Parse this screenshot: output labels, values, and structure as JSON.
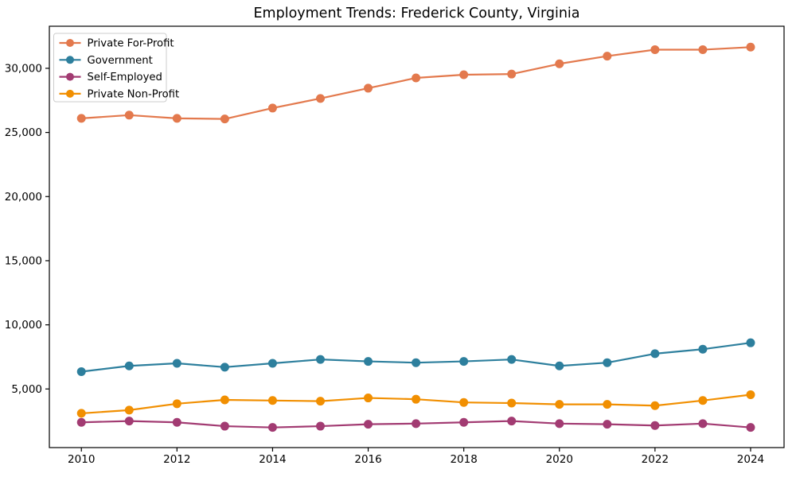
{
  "chart_data": {
    "type": "line",
    "title": "Employment Trends: Frederick County, Virginia",
    "xlabel": "",
    "ylabel": "",
    "x": [
      2010,
      2011,
      2012,
      2013,
      2014,
      2015,
      2016,
      2017,
      2018,
      2019,
      2020,
      2021,
      2022,
      2023,
      2024
    ],
    "x_ticks": [
      2010,
      2012,
      2014,
      2016,
      2018,
      2020,
      2022,
      2024
    ],
    "x_tick_labels": [
      "2010",
      "2012",
      "2014",
      "2016",
      "2018",
      "2020",
      "2022",
      "2024"
    ],
    "y_ticks": [
      5000,
      10000,
      15000,
      20000,
      25000,
      30000
    ],
    "y_tick_labels": [
      "5,000",
      "10,000",
      "15,000",
      "20,000",
      "25,000",
      "30,000"
    ],
    "xlim": [
      2009.33,
      2024.7
    ],
    "ylim": [
      430,
      33280
    ],
    "grid": false,
    "legend_position": "upper left",
    "series": [
      {
        "name": "Private For-Profit",
        "color": "#E3794D",
        "values": [
          26100,
          26350,
          26100,
          26050,
          26900,
          27650,
          28450,
          29250,
          29500,
          29550,
          30350,
          30950,
          31450,
          31450,
          31650
        ]
      },
      {
        "name": "Government",
        "color": "#2D7F9D",
        "values": [
          6350,
          6800,
          7000,
          6700,
          7000,
          7300,
          7150,
          7050,
          7150,
          7300,
          6800,
          7050,
          7750,
          8100,
          8600
        ]
      },
      {
        "name": "Self-Employed",
        "color": "#A23B72",
        "values": [
          2400,
          2500,
          2400,
          2100,
          2000,
          2100,
          2250,
          2300,
          2400,
          2500,
          2300,
          2250,
          2150,
          2300,
          2000
        ]
      },
      {
        "name": "Private Non-Profit",
        "color": "#F18F01",
        "values": [
          3100,
          3350,
          3850,
          4150,
          4100,
          4050,
          4300,
          4200,
          3950,
          3900,
          3800,
          3800,
          3700,
          4100,
          4550
        ]
      }
    ]
  },
  "plot_style": {
    "background": "#ffffff",
    "spine_color": "#000000",
    "tick_color": "#000000",
    "legend_border_color": "#cccccc",
    "legend_background": "#ffffff"
  }
}
